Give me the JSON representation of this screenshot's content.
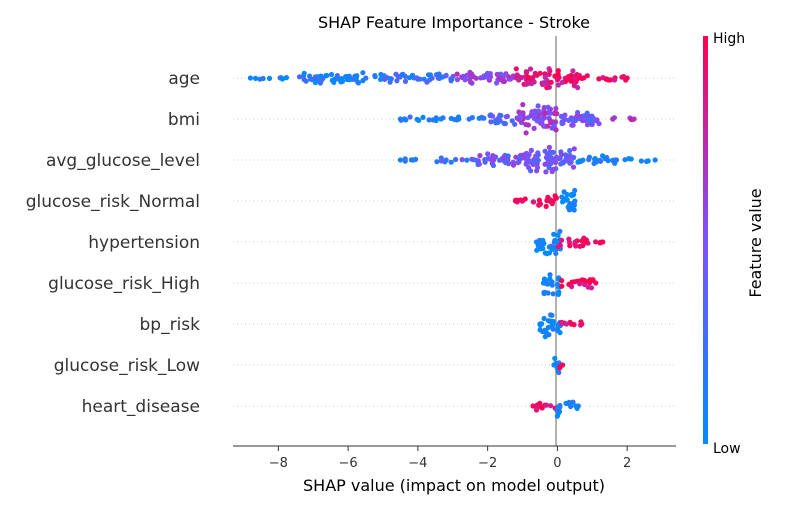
{
  "chart_data": {
    "type": "scatter",
    "subtype": "shap-beeswarm",
    "title": "SHAP Feature Importance - Stroke",
    "xlabel": "SHAP value (impact on model output)",
    "ylabel": "",
    "xlim": [
      -9.3,
      3.4
    ],
    "x_ticks": [
      -8,
      -6,
      -4,
      -2,
      0,
      2
    ],
    "grid": false,
    "colorbar": {
      "label": "Feature value",
      "high_label": "High",
      "low_label": "Low",
      "high_color": "#ff0052",
      "low_color": "#008bfb",
      "mid_color": "#7c52ff"
    },
    "features": [
      {
        "name": "age",
        "min": -8.8,
        "max": 2.0,
        "bands": [
          [
            -8.8,
            -7.5,
            2,
            0.05
          ],
          [
            -7.5,
            -5.0,
            7,
            0.1
          ],
          [
            -5.0,
            -3.0,
            6,
            0.25
          ],
          [
            -3.0,
            -1.2,
            8,
            0.55
          ],
          [
            -1.2,
            0.6,
            12,
            0.9
          ],
          [
            0.6,
            2.0,
            4,
            0.95
          ]
        ]
      },
      {
        "name": "bmi",
        "min": -4.5,
        "max": 2.2,
        "bands": [
          [
            -4.5,
            -2.0,
            3,
            0.1
          ],
          [
            -2.0,
            -1.2,
            7,
            0.35
          ],
          [
            -1.2,
            0.0,
            17,
            0.6
          ],
          [
            0.0,
            1.2,
            10,
            0.45
          ],
          [
            1.2,
            2.2,
            2,
            0.7
          ]
        ]
      },
      {
        "name": "avg_glucose_level",
        "min": -4.5,
        "max": 2.8,
        "bands": [
          [
            -4.5,
            -3.5,
            2,
            0.1
          ],
          [
            -3.5,
            -2.5,
            3,
            0.3
          ],
          [
            -2.5,
            -1.0,
            8,
            0.45
          ],
          [
            -1.0,
            0.5,
            15,
            0.45
          ],
          [
            0.5,
            2.0,
            5,
            0.05
          ],
          [
            2.0,
            2.8,
            2,
            0.05
          ]
        ]
      },
      {
        "name": "glucose_risk_Normal",
        "min": -1.2,
        "max": 0.5,
        "bands": [
          [
            -1.2,
            -0.6,
            4,
            0.98
          ],
          [
            -0.6,
            0.0,
            7,
            0.97
          ],
          [
            0.1,
            0.5,
            16,
            0.02
          ]
        ]
      },
      {
        "name": "hypertension",
        "min": -0.6,
        "max": 1.3,
        "bands": [
          [
            -0.6,
            0.1,
            16,
            0.02
          ],
          [
            0.0,
            0.9,
            7,
            0.96
          ],
          [
            0.9,
            1.3,
            2,
            0.97
          ]
        ]
      },
      {
        "name": "glucose_risk_High",
        "min": -0.4,
        "max": 1.1,
        "bands": [
          [
            -0.4,
            0.1,
            16,
            0.02
          ],
          [
            0.1,
            1.1,
            6,
            0.96
          ]
        ]
      },
      {
        "name": "bp_risk",
        "min": -0.5,
        "max": 0.7,
        "bands": [
          [
            -0.5,
            0.1,
            16,
            0.03
          ],
          [
            0.1,
            0.7,
            6,
            0.95
          ]
        ]
      },
      {
        "name": "glucose_risk_Low",
        "min": -0.1,
        "max": 0.15,
        "bands": [
          [
            -0.1,
            0.05,
            14,
            0.05
          ],
          [
            0.05,
            0.15,
            6,
            0.96
          ]
        ]
      },
      {
        "name": "heart_disease",
        "min": -0.7,
        "max": 0.6,
        "bands": [
          [
            -0.7,
            -0.05,
            6,
            0.97
          ],
          [
            -0.05,
            0.1,
            16,
            0.04
          ],
          [
            0.1,
            0.6,
            5,
            0.05
          ]
        ]
      }
    ]
  }
}
